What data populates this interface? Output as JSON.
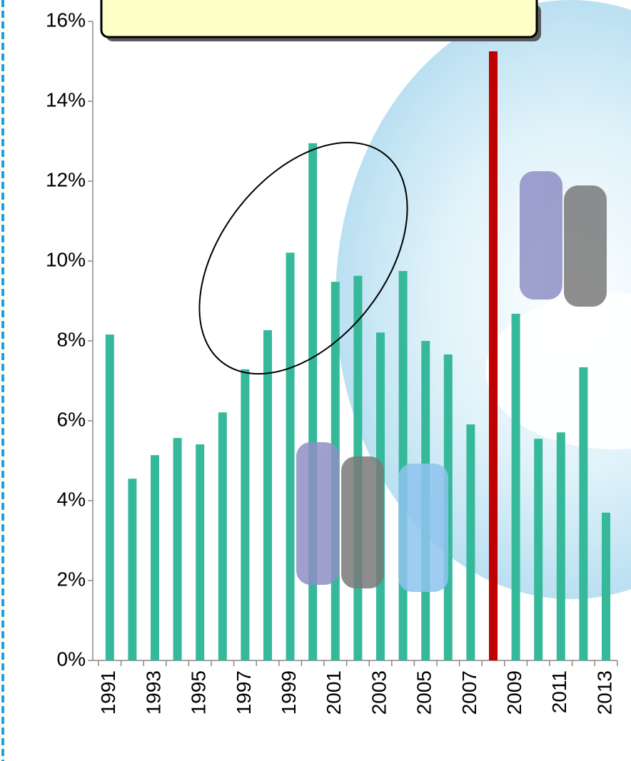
{
  "chart_data": {
    "type": "bar",
    "categories": [
      "1991",
      null,
      "1993",
      null,
      "1995",
      null,
      "1997",
      null,
      "1999",
      null,
      "2001",
      null,
      "2003",
      null,
      "2005",
      null,
      "2007",
      null,
      "2009",
      null,
      "2011",
      null,
      "2013"
    ],
    "values": [
      8.16,
      4.55,
      5.14,
      5.57,
      5.41,
      6.21,
      7.29,
      8.27,
      10.21,
      12.95,
      9.48,
      9.63,
      8.21,
      9.75,
      8.0,
      7.66,
      5.91,
      15.25,
      8.68,
      5.55,
      5.71,
      7.34,
      3.7
    ],
    "colors": [
      "#35b99a",
      "#35b99a",
      "#35b99a",
      "#35b99a",
      "#35b99a",
      "#35b99a",
      "#35b99a",
      "#35b99a",
      "#35b99a",
      "#35b99a",
      "#35b99a",
      "#35b99a",
      "#35b99a",
      "#35b99a",
      "#35b99a",
      "#35b99a",
      "#35b99a",
      "#c00000",
      "#35b99a",
      "#35b99a",
      "#35b99a",
      "#35b99a",
      "#35b99a"
    ],
    "ylim": [
      0,
      16
    ],
    "yticks": [
      {
        "value": 0,
        "label": "0%"
      },
      {
        "value": 2,
        "label": "2%"
      },
      {
        "value": 4,
        "label": "4%"
      },
      {
        "value": 6,
        "label": "6%"
      },
      {
        "value": 8,
        "label": "8%"
      },
      {
        "value": 10,
        "label": "10%"
      },
      {
        "value": 12,
        "label": "12%"
      },
      {
        "value": 14,
        "label": "14%"
      },
      {
        "value": 16,
        "label": "16%"
      }
    ]
  }
}
